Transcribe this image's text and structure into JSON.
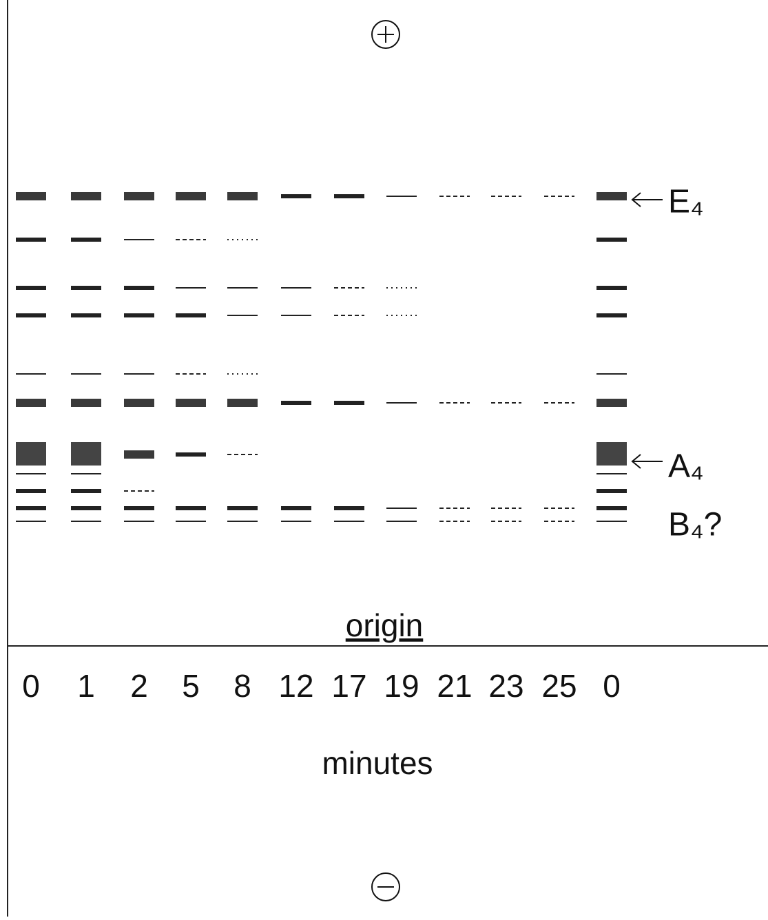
{
  "gel": {
    "lanes": [
      "0",
      "1",
      "2",
      "5",
      "8",
      "12",
      "17",
      "19",
      "21",
      "23",
      "25",
      "0"
    ],
    "origin_label": "origin",
    "axis_label": "minutes",
    "band_labels": {
      "e4": "E₄",
      "a4": "A₄",
      "b4": "B₄?"
    }
  }
}
